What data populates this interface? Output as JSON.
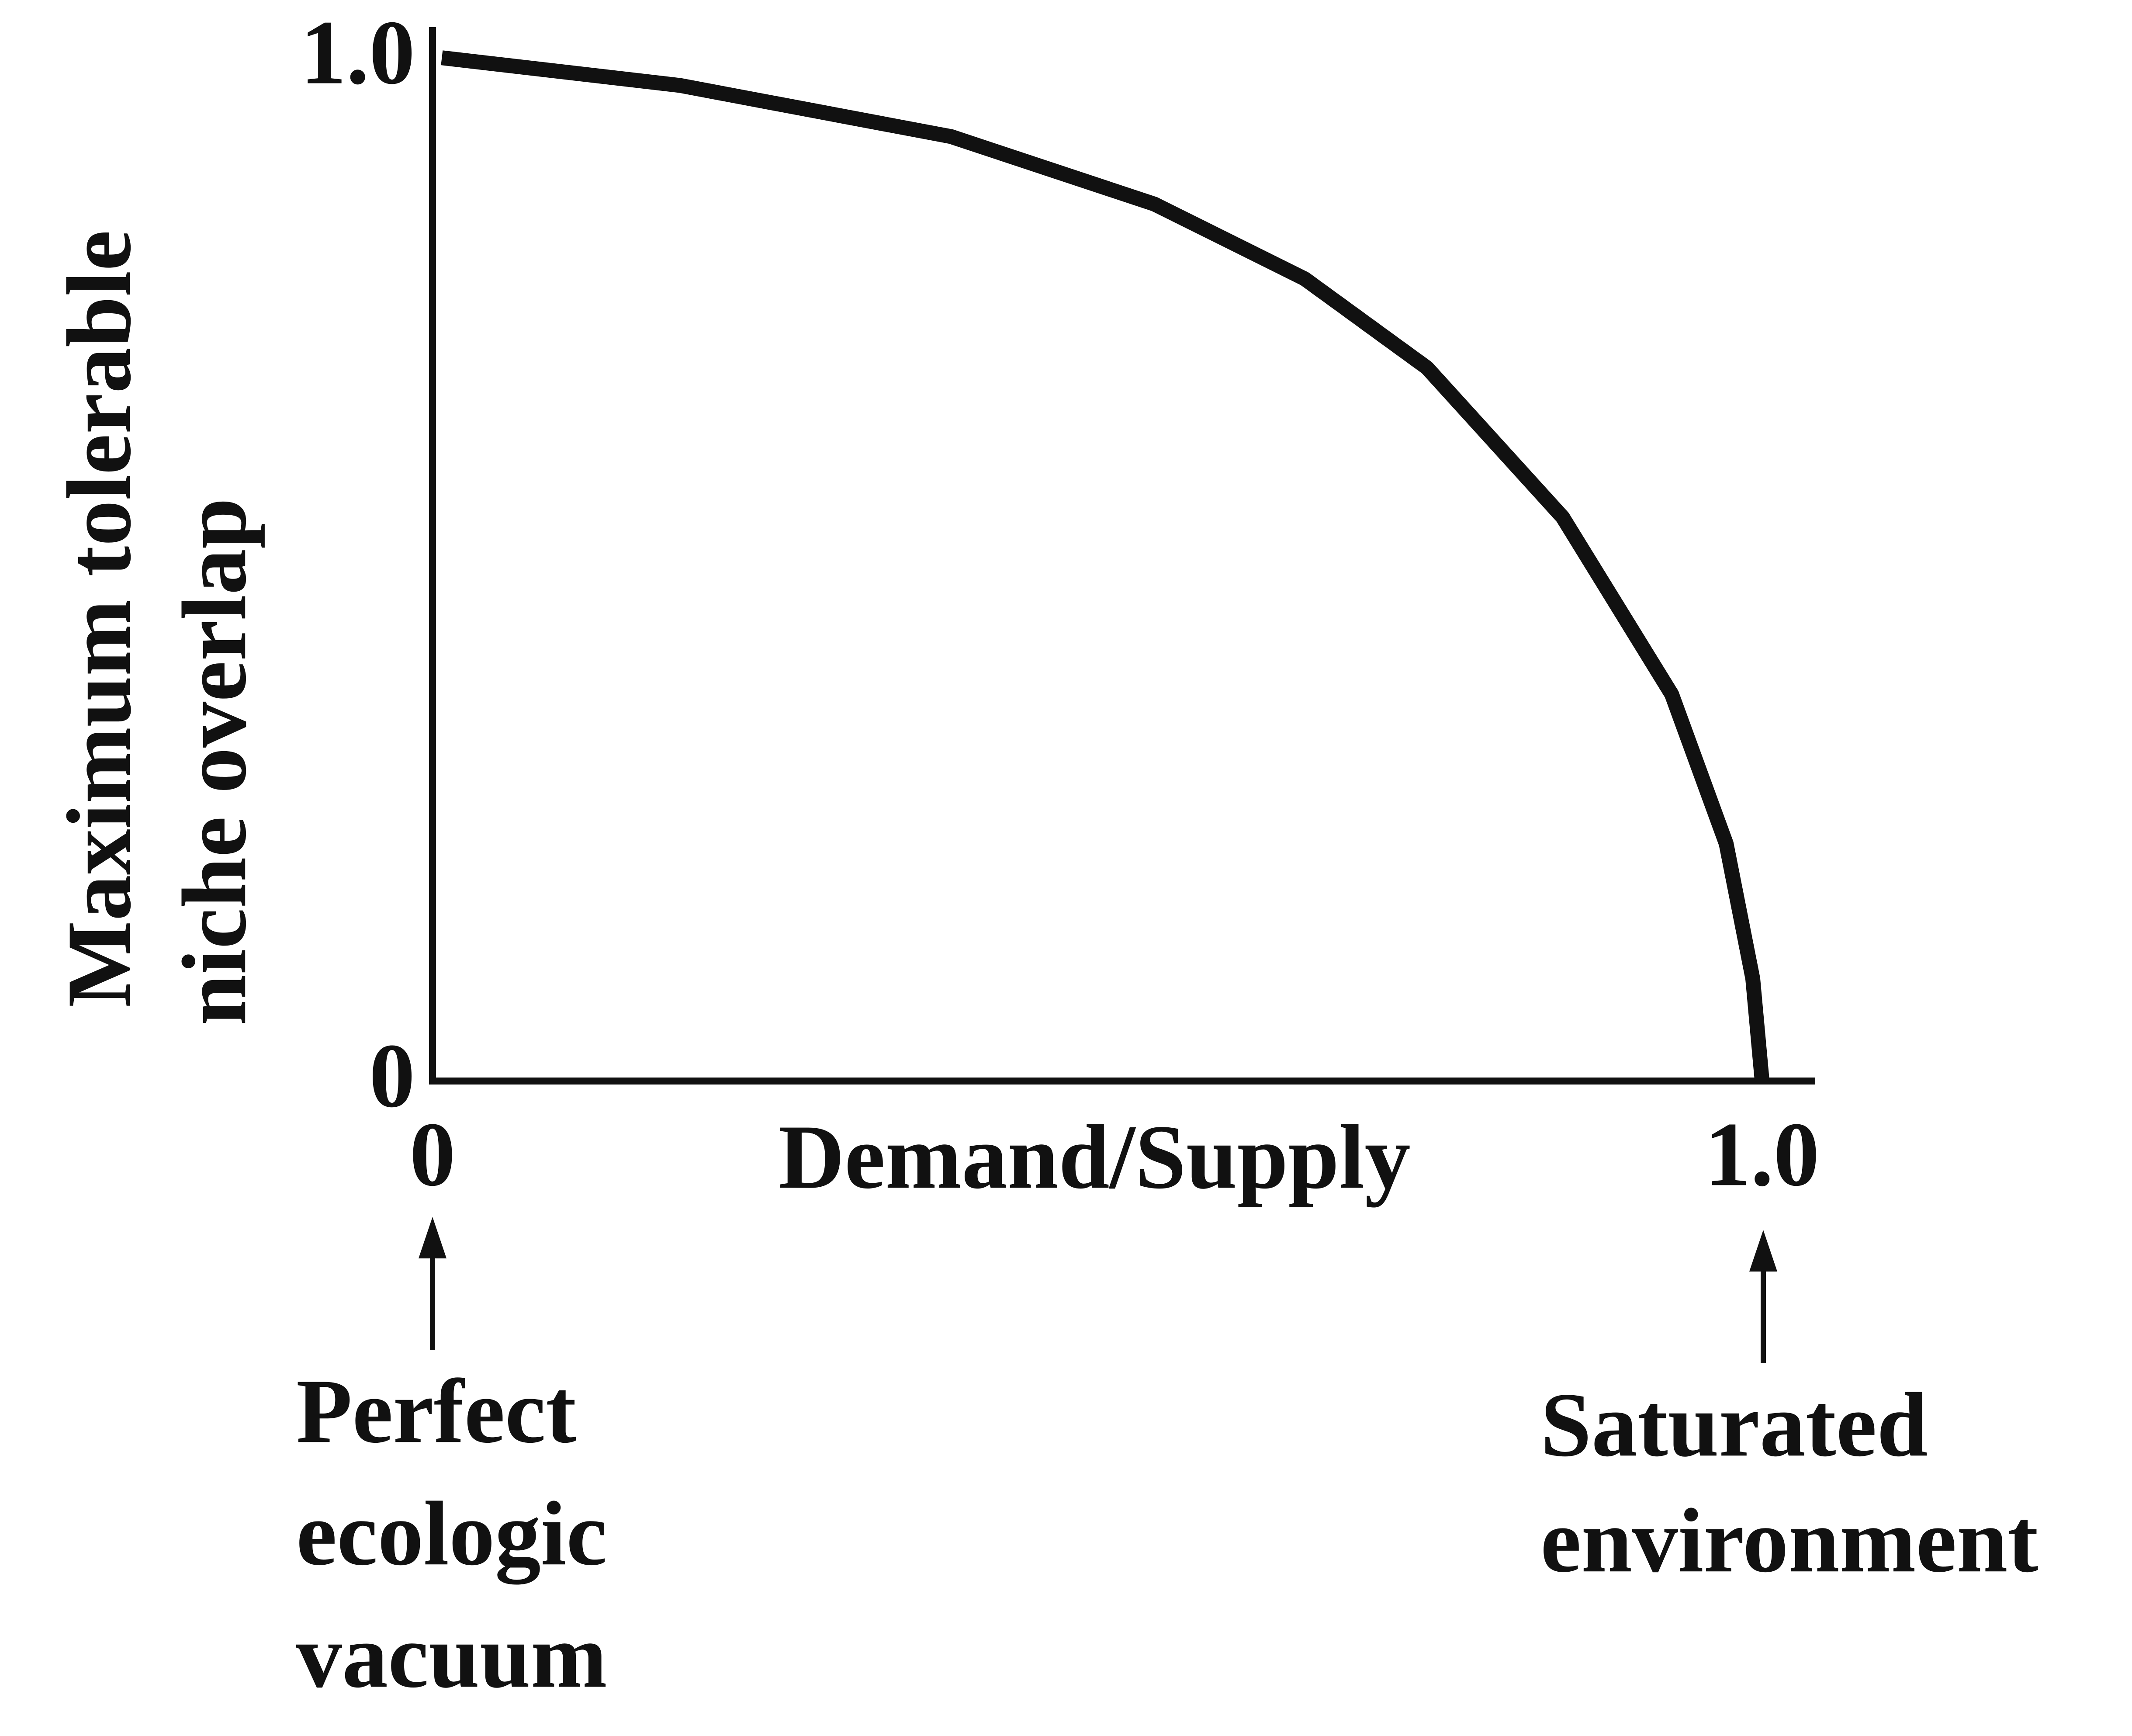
{
  "chart_data": {
    "type": "line",
    "xlabel": "Demand/Supply",
    "ylabel_lines": [
      "Maximum tolerable",
      "niche overlap"
    ],
    "x": [
      0.007,
      0.186,
      0.39,
      0.543,
      0.656,
      0.748,
      0.85,
      0.932,
      0.973,
      0.993,
      1.0
    ],
    "series": [
      {
        "color": "#111111",
        "values": [
          1.0,
          0.973,
          0.923,
          0.857,
          0.784,
          0.697,
          0.551,
          0.378,
          0.232,
          0.1,
          0
        ]
      }
    ],
    "xlim": [
      0,
      1.04
    ],
    "ylim": [
      0,
      1.03
    ],
    "xticks": [
      0,
      {
        "value": 1,
        "label": "1.0"
      }
    ],
    "yticks": [
      0,
      {
        "value": 1,
        "label": "1.0"
      }
    ],
    "grid": false,
    "annotations": [
      {
        "lines": [
          "Perfect",
          "ecologic",
          "vacuum"
        ]
      },
      {
        "lines": [
          "Saturated",
          "environment"
        ]
      }
    ]
  }
}
